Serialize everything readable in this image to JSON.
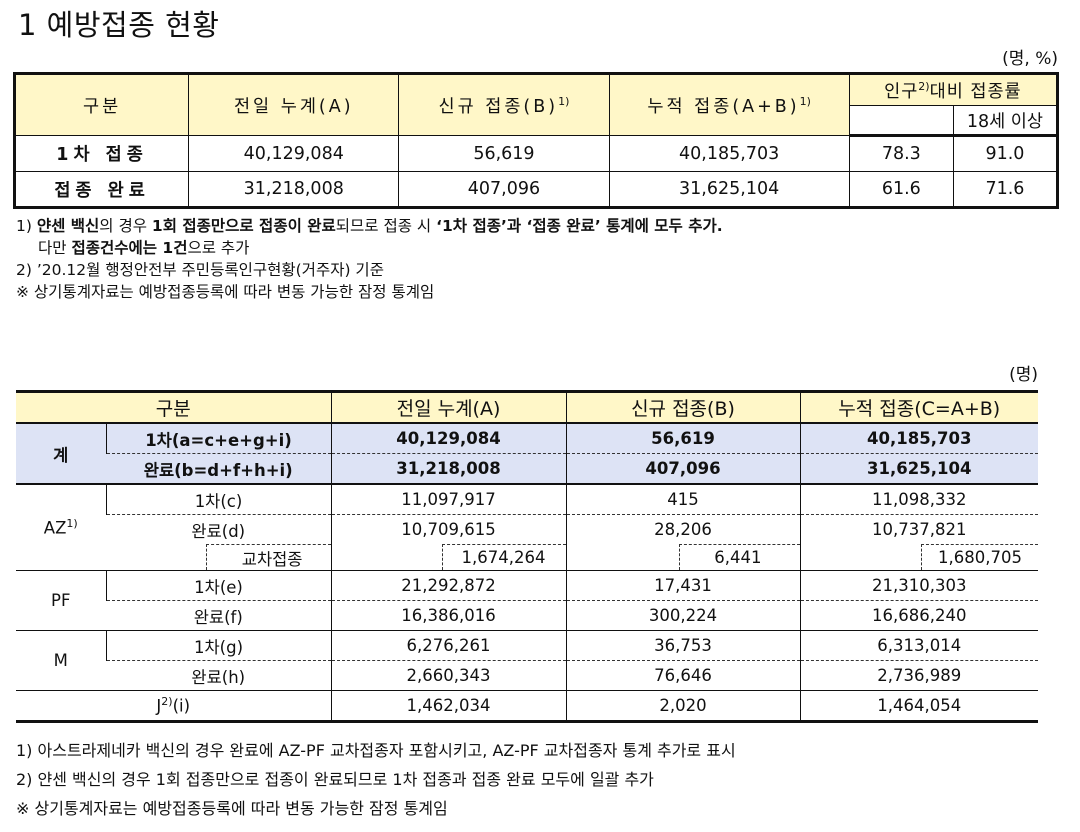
{
  "title": "1 예방접종 현황",
  "table1": {
    "unit": "(명, %)",
    "headers": {
      "category": "구분",
      "prev_total": "전일 누계(A)",
      "new": "신규 접종(B)",
      "new_sup": "1)",
      "cumulative": "누적 접종(A+B)",
      "cumulative_sup": "1)",
      "rate_pre": "인구",
      "rate_sup": "2)",
      "rate_post": "대비 접종률",
      "age18": "18세 이상"
    },
    "rows": [
      {
        "label": "1차 접종",
        "prev": "40,129,084",
        "new": "56,619",
        "cum": "40,185,703",
        "pop": "78.3",
        "adult": "91.0"
      },
      {
        "label": "접종 완료",
        "prev": "31,218,008",
        "new": "407,096",
        "cum": "31,625,104",
        "pop": "61.6",
        "adult": "71.6"
      }
    ],
    "notes": {
      "n1_a": "1) ",
      "n1_b": "얀센 백신",
      "n1_c": "의 경우 ",
      "n1_d": "1회 접종만으로 접종이 완료",
      "n1_e": "되므로 접종 시 ",
      "n1_f": "‘1차 접종’과 ‘접종 완료’ 통계에 모두 추가.",
      "n1_g": "다만 ",
      "n1_h": "접종건수에는 1건",
      "n1_i": "으로 추가",
      "n2": "2) ’20.12월 행정안전부 주민등록인구현황(거주자) 기준",
      "n3": "※ 상기통계자료는 예방접종등록에 따라 변동 가능한 잠정 통계임"
    }
  },
  "table2": {
    "unit": "(명)",
    "headers": [
      "구분",
      "전일 누계(A)",
      "신규 접종(B)",
      "누적 접종(C=A+B)"
    ],
    "total": {
      "group": "계",
      "rows": [
        {
          "label": "1차(a=c+e+g+i)",
          "prev": "40,129,084",
          "new": "56,619",
          "cum": "40,185,703"
        },
        {
          "label": "완료(b=d+f+h+i)",
          "prev": "31,218,008",
          "new": "407,096",
          "cum": "31,625,104"
        }
      ]
    },
    "az": {
      "group": "AZ",
      "sup": "1)",
      "first": {
        "label": "1차(c)",
        "prev": "11,097,917",
        "new": "415",
        "cum": "11,098,332"
      },
      "done": {
        "label": "완료(d)",
        "prev": "10,709,615",
        "new": "28,206",
        "cum": "10,737,821"
      },
      "cross": {
        "label": "교차접종",
        "prev": "1,674,264",
        "new": "6,441",
        "cum": "1,680,705"
      }
    },
    "pf": {
      "group": "PF",
      "first": {
        "label": "1차(e)",
        "prev": "21,292,872",
        "new": "17,431",
        "cum": "21,310,303"
      },
      "done": {
        "label": "완료(f)",
        "prev": "16,386,016",
        "new": "300,224",
        "cum": "16,686,240"
      }
    },
    "m": {
      "group": "M",
      "first": {
        "label": "1차(g)",
        "prev": "6,276,261",
        "new": "36,753",
        "cum": "6,313,014"
      },
      "done": {
        "label": "완료(h)",
        "prev": "2,660,343",
        "new": "76,646",
        "cum": "2,736,989"
      }
    },
    "j": {
      "label_pre": "J",
      "sup": "2)",
      "label_post": "(i)",
      "prev": "1,462,034",
      "new": "2,020",
      "cum": "1,464,054"
    },
    "notes": [
      "1) 아스트라제네카 백신의 경우 완료에 AZ-PF 교차접종자 포함시키고, AZ-PF 교차접종자 통계 추가로 표시",
      "2) 얀센 백신의 경우 1회 접종만으로 접종이 완료되므로 1차 접종과 접종 완료 모두에 일괄 추가",
      "※ 상기통계자료는 예방접종등록에 따라 변동 가능한 잠정 통계임"
    ]
  }
}
